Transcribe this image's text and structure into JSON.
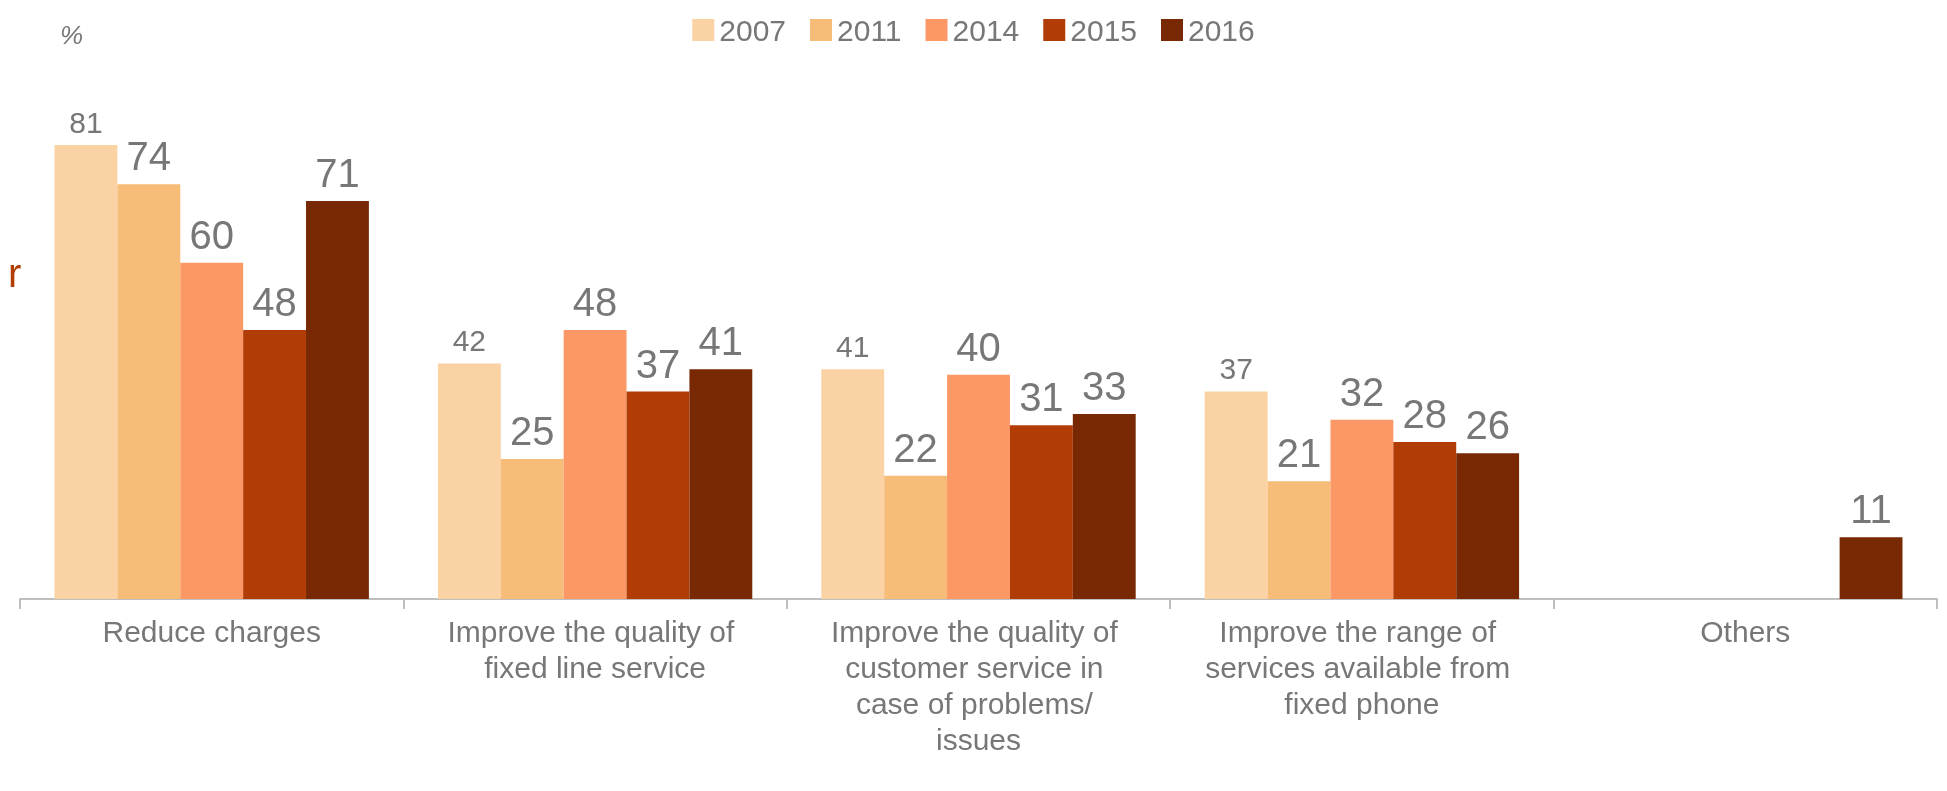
{
  "chart_data": {
    "type": "bar",
    "annotations": [
      "%",
      "r"
    ],
    "categories": [
      "Reduce charges",
      "Improve the quality of fixed line service",
      "Improve the quality of customer service in case of problems/ issues",
      "Improve the range of services available from fixed phone",
      "Others"
    ],
    "series": [
      {
        "name": "2007",
        "color": "#fad2a4",
        "values": [
          81,
          42,
          41,
          37,
          null
        ]
      },
      {
        "name": "2011",
        "color": "#f7bc78",
        "values": [
          74,
          25,
          22,
          21,
          null
        ]
      },
      {
        "name": "2014",
        "color": "#fc9766",
        "values": [
          60,
          48,
          40,
          32,
          null
        ]
      },
      {
        "name": "2015",
        "color": "#b23c05",
        "values": [
          48,
          37,
          31,
          28,
          null
        ]
      },
      {
        "name": "2016",
        "color": "#782904",
        "values": [
          71,
          41,
          33,
          26,
          11
        ]
      }
    ],
    "data_labels": true,
    "legend": "top",
    "grid": false
  }
}
